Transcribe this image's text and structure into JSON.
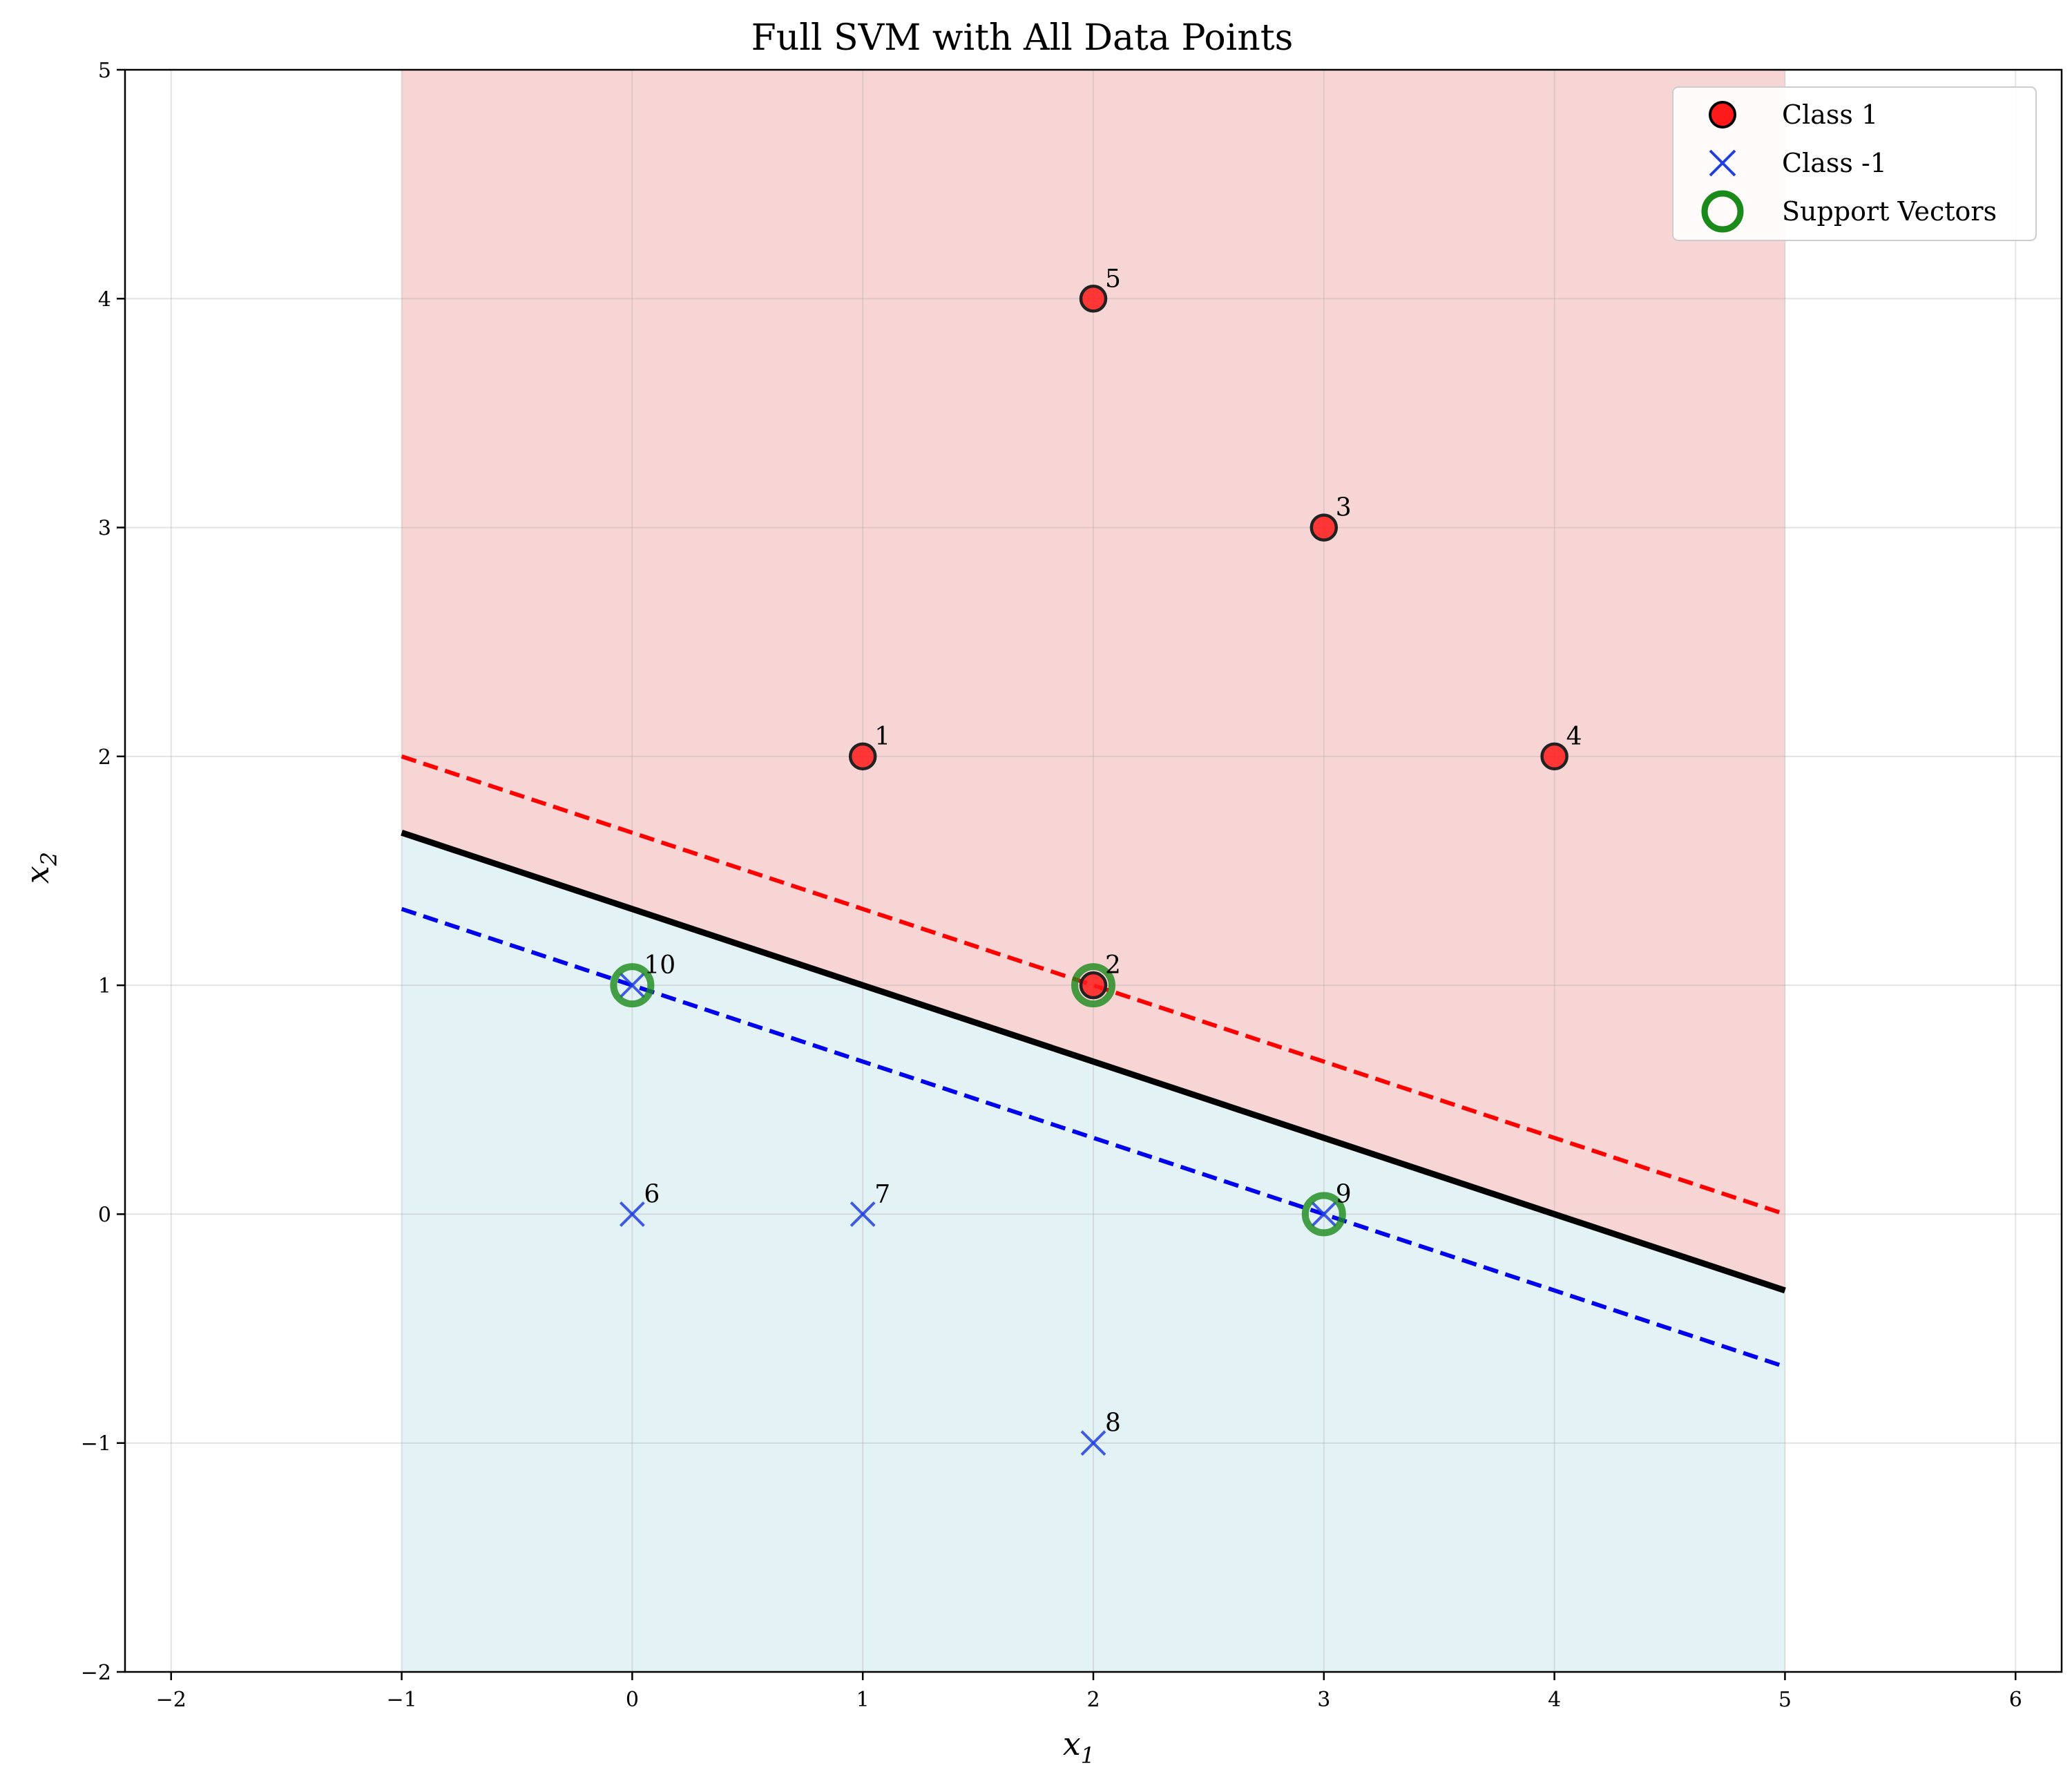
{
  "chart_data": {
    "type": "scatter",
    "title": "Full SVM with All Data Points",
    "xlabel": "x",
    "xlabel_sub": "1",
    "ylabel": "x",
    "ylabel_sub": "2",
    "xlim": [
      -2.2,
      6.2
    ],
    "ylim": [
      -2,
      5
    ],
    "xticks": [
      -2,
      -1,
      0,
      1,
      2,
      3,
      4,
      5,
      6
    ],
    "xtick_labels": [
      "−2",
      "−1",
      "0",
      "1",
      "2",
      "3",
      "4",
      "5",
      "6"
    ],
    "yticks": [
      -2,
      -1,
      0,
      1,
      2,
      3,
      4,
      5
    ],
    "ytick_labels": [
      "−2",
      "−1",
      "0",
      "1",
      "2",
      "3",
      "4",
      "5"
    ],
    "grid": true,
    "legend_position": "top-right",
    "legend": [
      {
        "label": "Class 1",
        "marker": "circle"
      },
      {
        "label": "Class -1",
        "marker": "x"
      },
      {
        "label": "Support Vectors",
        "marker": "ring"
      }
    ],
    "colors": {
      "class1": "#ff1a1a",
      "class_neg1": "#1f3fe0",
      "support": "#1a8a1a",
      "region_pos": "#f8d5d5",
      "region_neg": "#e3f2f5",
      "boundary": "#000000",
      "margin_pos": "#ff0000",
      "margin_neg": "#0000ee"
    },
    "decision_function": {
      "w": [
        1,
        3
      ],
      "b": -4
    },
    "region_x_range": [
      -1,
      5
    ],
    "points": [
      {
        "id": "1",
        "x": 1,
        "y": 2,
        "cls": 1,
        "sv": false
      },
      {
        "id": "2",
        "x": 2,
        "y": 1,
        "cls": 1,
        "sv": true
      },
      {
        "id": "3",
        "x": 3,
        "y": 3,
        "cls": 1,
        "sv": false
      },
      {
        "id": "4",
        "x": 4,
        "y": 2,
        "cls": 1,
        "sv": false
      },
      {
        "id": "5",
        "x": 2,
        "y": 4,
        "cls": 1,
        "sv": false
      },
      {
        "id": "6",
        "x": 0,
        "y": 0,
        "cls": -1,
        "sv": false
      },
      {
        "id": "7",
        "x": 1,
        "y": 0,
        "cls": -1,
        "sv": false
      },
      {
        "id": "8",
        "x": 2,
        "y": -1,
        "cls": -1,
        "sv": false
      },
      {
        "id": "9",
        "x": 3,
        "y": 0,
        "cls": -1,
        "sv": true
      },
      {
        "id": "10",
        "x": 0,
        "y": 1,
        "cls": -1,
        "sv": true
      }
    ]
  }
}
